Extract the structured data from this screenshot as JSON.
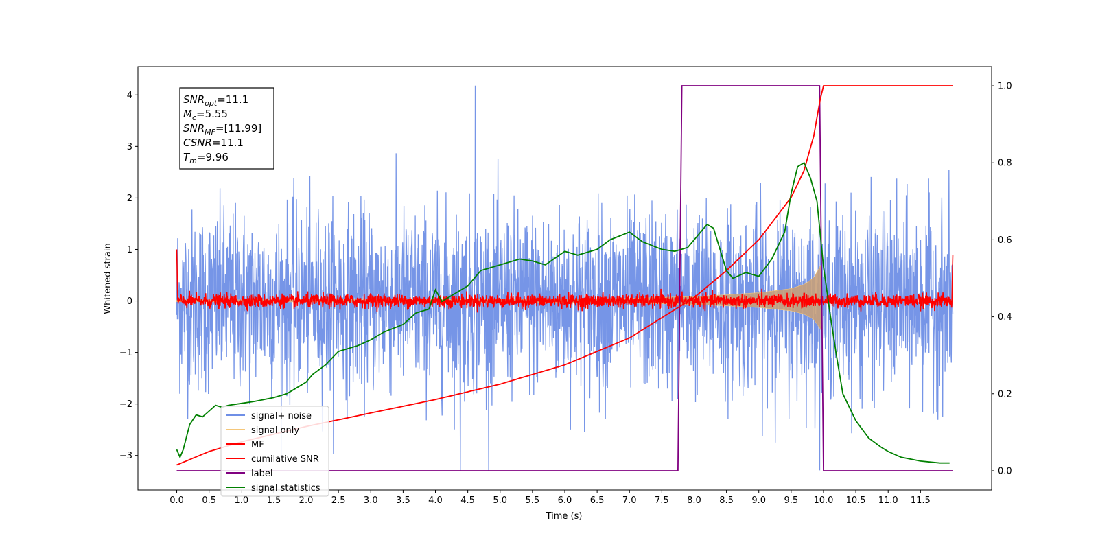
{
  "chart_data": {
    "type": "line",
    "xlabel": "Time (s)",
    "ylabel": "Whitened strain",
    "xlim": [
      -0.6,
      12.6
    ],
    "ylim": [
      -3.67,
      4.55
    ],
    "y2lim": [
      -0.05,
      1.05
    ],
    "x_ticks": [
      "0.0",
      "0.5",
      "1.0",
      "1.5",
      "2.0",
      "2.5",
      "3.0",
      "3.5",
      "4.0",
      "4.5",
      "5.0",
      "5.5",
      "6.0",
      "6.5",
      "7.0",
      "7.5",
      "8.0",
      "8.5",
      "9.0",
      "9.5",
      "10.0",
      "10.5",
      "11.0",
      "11.5"
    ],
    "x_tick_values": [
      0.0,
      0.5,
      1.0,
      1.5,
      2.0,
      2.5,
      3.0,
      3.5,
      4.0,
      4.5,
      5.0,
      5.5,
      6.0,
      6.5,
      7.0,
      7.5,
      8.0,
      8.5,
      9.0,
      9.5,
      10.0,
      10.5,
      11.0,
      11.5
    ],
    "y_ticks": [
      "−3",
      "−2",
      "−1",
      "0",
      "1",
      "2",
      "3",
      "4"
    ],
    "y_tick_values": [
      -3,
      -2,
      -1,
      0,
      1,
      2,
      3,
      4
    ],
    "y2_ticks": [
      "0.0",
      "0.2",
      "0.4",
      "0.6",
      "0.8",
      "1.0"
    ],
    "y2_tick_values": [
      0.0,
      0.2,
      0.4,
      0.6,
      0.8,
      1.0
    ],
    "annotation": {
      "lines": [
        {
          "base": "SNR",
          "sub": "opt",
          "value": "=11.1"
        },
        {
          "base": "M",
          "sub": "c",
          "value": "=5.55"
        },
        {
          "base": "SNR",
          "sub": "MF",
          "value": "=[11.99]"
        },
        {
          "base": "CSNR",
          "sub": "",
          "value": "=11.1"
        },
        {
          "base": "T",
          "sub": "m",
          "value": "=9.96"
        }
      ]
    },
    "series": [
      {
        "name": "signal+ noise",
        "color": "#6f8fe6",
        "kind": "noise-band",
        "axis": "left",
        "x_range": [
          0.0,
          12.0
        ],
        "typical_amplitude": 1.4,
        "max": 4.18,
        "min": -3.3
      },
      {
        "name": "signal only",
        "color": "#f5c77a",
        "kind": "chirp-envelope",
        "axis": "left",
        "x": [
          0.0,
          5.0,
          7.0,
          8.0,
          8.5,
          9.0,
          9.5,
          9.7,
          9.85,
          9.96
        ],
        "envelope": [
          0.02,
          0.03,
          0.05,
          0.09,
          0.12,
          0.16,
          0.24,
          0.32,
          0.45,
          0.7
        ]
      },
      {
        "name": "MF",
        "color": "#ff0000",
        "kind": "noise-band",
        "axis": "left",
        "x_range": [
          0.0,
          12.0
        ],
        "typical_amplitude": 0.12,
        "start_value": 1.0
      },
      {
        "name": "cumilative SNR",
        "color": "#ff0000",
        "kind": "line",
        "axis": "right",
        "x": [
          0.0,
          0.5,
          1.0,
          2.0,
          3.0,
          4.0,
          5.0,
          6.0,
          7.0,
          8.0,
          8.5,
          9.0,
          9.5,
          9.7,
          9.85,
          9.96,
          10.0,
          12.0
        ],
        "values": [
          0.015,
          0.05,
          0.075,
          0.115,
          0.15,
          0.185,
          0.225,
          0.275,
          0.345,
          0.45,
          0.52,
          0.6,
          0.71,
          0.78,
          0.87,
          0.975,
          1.0,
          1.0
        ]
      },
      {
        "name": "label",
        "color": "#800080",
        "kind": "line",
        "axis": "right",
        "x": [
          0.0,
          7.75,
          7.81,
          9.94,
          10.0,
          12.0
        ],
        "values": [
          0.0,
          0.0,
          1.0,
          1.0,
          0.0,
          0.0
        ]
      },
      {
        "name": "signal statistics",
        "color": "#008000",
        "kind": "line",
        "axis": "right",
        "x": [
          0.0,
          0.05,
          0.1,
          0.2,
          0.3,
          0.4,
          0.5,
          0.6,
          0.7,
          0.8,
          1.0,
          1.2,
          1.5,
          1.7,
          1.8,
          2.0,
          2.1,
          2.3,
          2.5,
          2.8,
          3.0,
          3.2,
          3.5,
          3.7,
          3.9,
          4.0,
          4.1,
          4.3,
          4.5,
          4.7,
          5.0,
          5.3,
          5.5,
          5.7,
          6.0,
          6.2,
          6.5,
          6.7,
          7.0,
          7.2,
          7.5,
          7.7,
          7.9,
          8.0,
          8.2,
          8.3,
          8.5,
          8.6,
          8.8,
          9.0,
          9.2,
          9.4,
          9.5,
          9.6,
          9.7,
          9.8,
          9.9,
          10.0,
          10.1,
          10.2,
          10.3,
          10.5,
          10.7,
          10.9,
          11.0,
          11.2,
          11.5,
          11.8,
          11.95
        ],
        "values": [
          0.055,
          0.035,
          0.055,
          0.12,
          0.145,
          0.14,
          0.155,
          0.17,
          0.165,
          0.17,
          0.175,
          0.18,
          0.19,
          0.2,
          0.21,
          0.23,
          0.25,
          0.275,
          0.31,
          0.325,
          0.34,
          0.36,
          0.38,
          0.41,
          0.42,
          0.47,
          0.44,
          0.46,
          0.48,
          0.52,
          0.535,
          0.55,
          0.545,
          0.535,
          0.57,
          0.56,
          0.575,
          0.6,
          0.62,
          0.595,
          0.575,
          0.57,
          0.58,
          0.6,
          0.64,
          0.63,
          0.52,
          0.5,
          0.515,
          0.505,
          0.55,
          0.62,
          0.72,
          0.79,
          0.8,
          0.76,
          0.7,
          0.53,
          0.41,
          0.3,
          0.2,
          0.13,
          0.085,
          0.06,
          0.05,
          0.035,
          0.025,
          0.02,
          0.02
        ]
      }
    ],
    "legend": {
      "placement": "lower-left",
      "entries": [
        "signal+ noise",
        "signal only",
        "MF",
        "cumilative SNR",
        "label",
        "signal statistics"
      ]
    },
    "colors": {
      "signal_noise": "#6f8fe6",
      "signal_only": "#f5c77a",
      "signal_fill": "#c8a07a",
      "mf": "#ff0000",
      "cumulative_snr": "#ff0000",
      "label": "#800080",
      "signal_statistics": "#008000"
    }
  }
}
